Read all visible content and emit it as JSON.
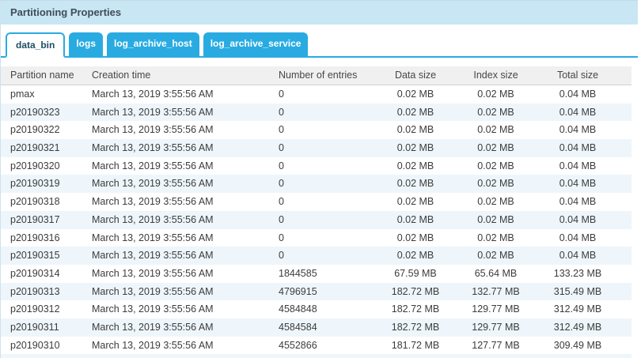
{
  "panel": {
    "title": "Partitioning Properties"
  },
  "tabs": [
    {
      "label": "data_bin",
      "active": true
    },
    {
      "label": "logs",
      "active": false
    },
    {
      "label": "log_archive_host",
      "active": false
    },
    {
      "label": "log_archive_service",
      "active": false
    }
  ],
  "table": {
    "columns": [
      "Partition name",
      "Creation time",
      "Number of entries",
      "Data size",
      "Index size",
      "Total size"
    ],
    "rows": [
      [
        "pmax",
        "March 13, 2019 3:55:56 AM",
        "0",
        "0.02 MB",
        "0.02 MB",
        "0.04 MB"
      ],
      [
        "p20190323",
        "March 13, 2019 3:55:56 AM",
        "0",
        "0.02 MB",
        "0.02 MB",
        "0.04 MB"
      ],
      [
        "p20190322",
        "March 13, 2019 3:55:56 AM",
        "0",
        "0.02 MB",
        "0.02 MB",
        "0.04 MB"
      ],
      [
        "p20190321",
        "March 13, 2019 3:55:56 AM",
        "0",
        "0.02 MB",
        "0.02 MB",
        "0.04 MB"
      ],
      [
        "p20190320",
        "March 13, 2019 3:55:56 AM",
        "0",
        "0.02 MB",
        "0.02 MB",
        "0.04 MB"
      ],
      [
        "p20190319",
        "March 13, 2019 3:55:56 AM",
        "0",
        "0.02 MB",
        "0.02 MB",
        "0.04 MB"
      ],
      [
        "p20190318",
        "March 13, 2019 3:55:56 AM",
        "0",
        "0.02 MB",
        "0.02 MB",
        "0.04 MB"
      ],
      [
        "p20190317",
        "March 13, 2019 3:55:56 AM",
        "0",
        "0.02 MB",
        "0.02 MB",
        "0.04 MB"
      ],
      [
        "p20190316",
        "March 13, 2019 3:55:56 AM",
        "0",
        "0.02 MB",
        "0.02 MB",
        "0.04 MB"
      ],
      [
        "p20190315",
        "March 13, 2019 3:55:56 AM",
        "0",
        "0.02 MB",
        "0.02 MB",
        "0.04 MB"
      ],
      [
        "p20190314",
        "March 13, 2019 3:55:56 AM",
        "1844585",
        "67.59 MB",
        "65.64 MB",
        "133.23 MB"
      ],
      [
        "p20190313",
        "March 13, 2019 3:55:56 AM",
        "4796915",
        "182.72 MB",
        "132.77 MB",
        "315.49 MB"
      ],
      [
        "p20190312",
        "March 13, 2019 3:55:56 AM",
        "4584848",
        "182.72 MB",
        "129.77 MB",
        "312.49 MB"
      ],
      [
        "p20190311",
        "March 13, 2019 3:55:56 AM",
        "4584584",
        "182.72 MB",
        "129.77 MB",
        "312.49 MB"
      ],
      [
        "p20190310",
        "March 13, 2019 3:55:56 AM",
        "4552866",
        "181.72 MB",
        "127.77 MB",
        "309.49 MB"
      ]
    ]
  },
  "colors": {
    "accent": "#29abe2",
    "titlebar_bg": "#c9e6f4",
    "alt_row_bg": "#eef6fb",
    "active_tab_text": "#1d4e63",
    "title_text": "#3e4d58"
  }
}
